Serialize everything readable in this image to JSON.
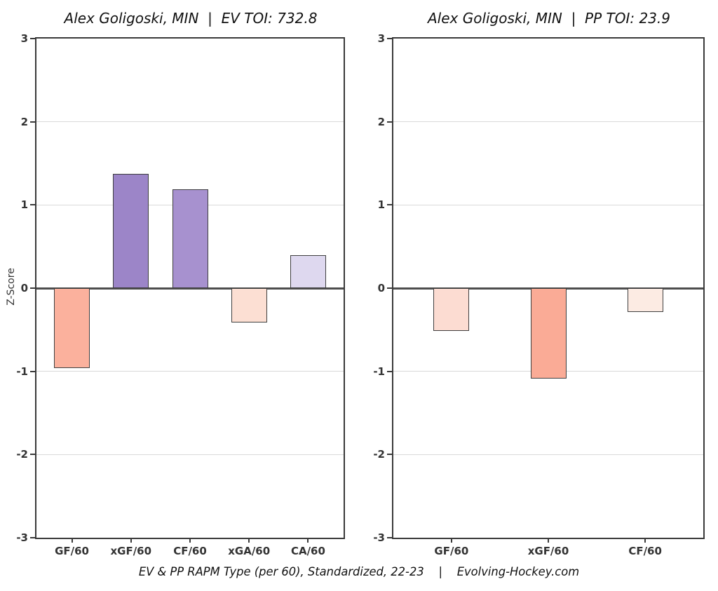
{
  "figure": {
    "caption": "EV & PP RAPM Type (per 60), Standardized, 22-23    |    Evolving-Hockey.com"
  },
  "chart_data": [
    {
      "type": "bar",
      "title": "Alex Goligoski, MIN  |  EV TOI: 732.8",
      "xlabel": "",
      "ylabel": "Z-Score",
      "ylim": [
        -3,
        3
      ],
      "yticks": [
        3,
        2,
        1,
        0,
        -1,
        -2,
        -3
      ],
      "grid": "horizontal gridlines at each integer, zero axis emphasized",
      "legend": "none",
      "categories": [
        "GF/60",
        "xGF/60",
        "CF/60",
        "xGA/60",
        "CA/60"
      ],
      "values": [
        -0.96,
        1.37,
        1.19,
        -0.41,
        0.4
      ],
      "bar_colors": [
        "#fbb19d",
        "#9c85c8",
        "#a791cf",
        "#fcdfd3",
        "#ded8ef"
      ],
      "bar_border_color": "#3f3f3f"
    },
    {
      "type": "bar",
      "title": "Alex Goligoski, MIN  |  PP TOI: 23.9",
      "xlabel": "",
      "ylabel": "",
      "ylim": [
        -3,
        3
      ],
      "yticks": [
        3,
        2,
        1,
        0,
        -1,
        -2,
        -3
      ],
      "grid": "horizontal gridlines at each integer, zero axis emphasized",
      "legend": "none",
      "categories": [
        "GF/60",
        "xGF/60",
        "CF/60"
      ],
      "values": [
        -0.51,
        -1.09,
        -0.29
      ],
      "bar_colors": [
        "#fcdcd2",
        "#faab96",
        "#fcebe3"
      ],
      "bar_border_color": "#3f3f3f"
    }
  ]
}
